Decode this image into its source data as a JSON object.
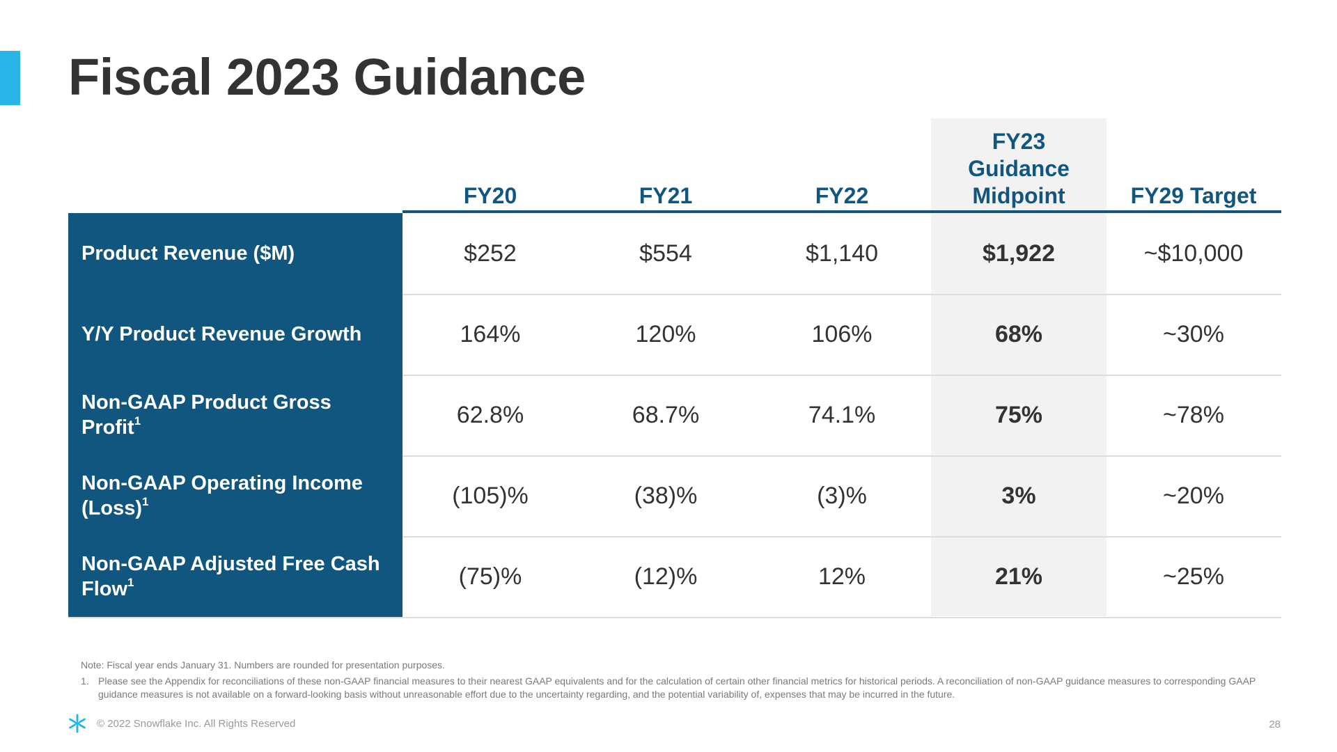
{
  "title": "Fiscal 2023 Guidance",
  "table": {
    "columns": [
      "FY20",
      "FY21",
      "FY22",
      "FY23\nGuidance\nMidpoint",
      "FY29 Target"
    ],
    "rows": [
      {
        "label": "Product Revenue ($M)",
        "footnote": "",
        "values": [
          "$252",
          "$554",
          "$1,140",
          "$1,922",
          "~$10,000"
        ]
      },
      {
        "label": "Y/Y Product Revenue Growth",
        "footnote": "",
        "values": [
          "164%",
          "120%",
          "106%",
          "68%",
          "~30%"
        ]
      },
      {
        "label": "Non-GAAP Product Gross Profit",
        "footnote": "1",
        "values": [
          "62.8%",
          "68.7%",
          "74.1%",
          "75%",
          "~78%"
        ]
      },
      {
        "label": "Non-GAAP Operating Income (Loss)",
        "footnote": "1",
        "values": [
          "(105)%",
          "(38)%",
          "(3)%",
          "3%",
          "~20%"
        ]
      },
      {
        "label": "Non-GAAP Adjusted Free Cash Flow",
        "footnote": "1",
        "values": [
          "(75)%",
          "(12)%",
          "12%",
          "21%",
          "~25%"
        ]
      }
    ]
  },
  "notes": {
    "note": "Note: Fiscal year ends January 31. Numbers are rounded for presentation purposes.",
    "footnote_number": "1.",
    "footnote_text": "Please see the Appendix for reconciliations of these non-GAAP financial measures to their nearest GAAP equivalents and for the calculation of certain other financial metrics for historical periods. A reconciliation of non-GAAP guidance measures to corresponding GAAP guidance measures is not available on a forward-looking basis without unreasonable effort due to the uncertainty regarding, and the potential variability of, expenses that may be incurred in the future."
  },
  "footer": {
    "logo_icon": "snowflake-icon",
    "copyright": "© 2022 Snowflake Inc. All Rights Reserved",
    "page_number": "28"
  },
  "colors": {
    "accent": "#29b5e8",
    "header_navy": "#11567f",
    "highlight_column": "#f2f2f2"
  }
}
